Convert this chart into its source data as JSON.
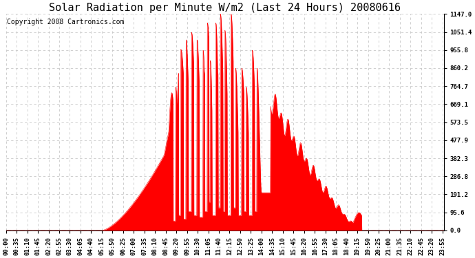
{
  "title": "Solar Radiation per Minute W/m2 (Last 24 Hours) 20080616",
  "copyright": "Copyright 2008 Cartronics.com",
  "yticks": [
    0.0,
    95.6,
    191.2,
    286.8,
    382.3,
    477.9,
    573.5,
    669.1,
    764.7,
    860.2,
    955.8,
    1051.4,
    1147.0
  ],
  "ymax": 1147.0,
  "ymin": 0.0,
  "fill_color": "#ff0000",
  "line_color": "#ff0000",
  "dashed_line_color": "#ff0000",
  "grid_color": "#c8c8c8",
  "background_color": "#ffffff",
  "title_fontsize": 11,
  "copyright_fontsize": 7,
  "tick_fontsize": 6.5,
  "xtick_labels": [
    "00:00",
    "00:35",
    "01:10",
    "01:45",
    "02:20",
    "02:55",
    "03:30",
    "04:05",
    "04:40",
    "05:15",
    "05:50",
    "06:25",
    "07:00",
    "07:35",
    "08:10",
    "08:45",
    "09:20",
    "09:55",
    "10:30",
    "11:05",
    "11:40",
    "12:15",
    "12:50",
    "13:25",
    "14:00",
    "14:35",
    "15:10",
    "15:45",
    "16:20",
    "16:55",
    "17:30",
    "18:05",
    "18:40",
    "19:15",
    "19:50",
    "20:25",
    "21:00",
    "21:35",
    "22:10",
    "22:45",
    "23:20",
    "23:55"
  ]
}
